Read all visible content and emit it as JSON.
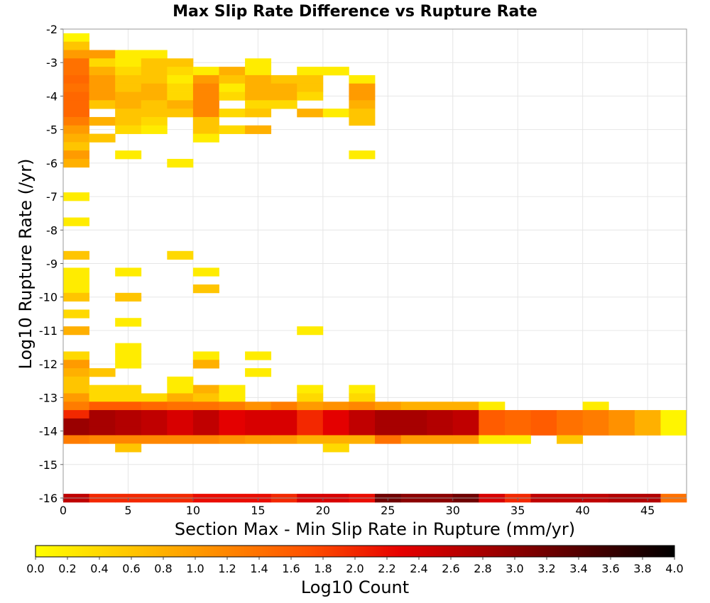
{
  "chart_data": {
    "type": "heatmap",
    "title": "Max Slip Rate Difference vs Rupture Rate",
    "xlabel": "Section Max - Min Slip Rate in Rupture (mm/yr)",
    "ylabel": "Log10 Rupture Rate (/yr)",
    "xlim": [
      0,
      48
    ],
    "ylim": [
      -16,
      -2
    ],
    "x_bin_width": 2,
    "y_bin_width": 0.25,
    "x_ticks": [
      0,
      5,
      10,
      15,
      20,
      25,
      30,
      35,
      40,
      45
    ],
    "y_ticks": [
      -2,
      -3,
      -4,
      -5,
      -6,
      -7,
      -8,
      -9,
      -10,
      -11,
      -12,
      -13,
      -14,
      -15,
      -16
    ],
    "grid": true,
    "colorbar": {
      "label": "Log10 Count",
      "range": [
        0.0,
        4.0
      ],
      "ticks": [
        "0.0",
        "0.2",
        "0.4",
        "0.6",
        "0.8",
        "1.0",
        "1.2",
        "1.4",
        "1.6",
        "1.8",
        "2.0",
        "2.2",
        "2.4",
        "2.6",
        "2.8",
        "3.0",
        "3.2",
        "3.4",
        "3.6",
        "3.8",
        "4.0"
      ],
      "colors": [
        "#ffff00",
        "#ffc800",
        "#ff8c00",
        "#ff5000",
        "#e60000",
        "#a00000",
        "#500000",
        "#000000"
      ]
    },
    "cells": [
      [
        0,
        -2.25,
        0.1
      ],
      [
        0,
        -2.5,
        0.6
      ],
      [
        0,
        -2.75,
        1.0
      ],
      [
        0,
        -3.0,
        1.4
      ],
      [
        0,
        -3.25,
        1.4
      ],
      [
        0,
        -3.5,
        1.5
      ],
      [
        0,
        -3.75,
        1.4
      ],
      [
        0,
        -4.0,
        1.5
      ],
      [
        0,
        -4.25,
        1.5
      ],
      [
        0,
        -4.5,
        1.5
      ],
      [
        0,
        -4.75,
        1.3
      ],
      [
        0,
        -5.0,
        1.0
      ],
      [
        0,
        -5.25,
        0.8
      ],
      [
        0,
        -5.5,
        0.6
      ],
      [
        0,
        -5.75,
        1.0
      ],
      [
        0,
        -6.0,
        0.8
      ],
      [
        0,
        -7.0,
        0.2
      ],
      [
        0,
        -7.75,
        0.2
      ],
      [
        0,
        -8.75,
        0.6
      ],
      [
        0,
        -9.25,
        0.2
      ],
      [
        0,
        -9.5,
        0.2
      ],
      [
        0,
        -9.75,
        0.2
      ],
      [
        0,
        -10.0,
        0.6
      ],
      [
        0,
        -10.5,
        0.4
      ],
      [
        0,
        -11.0,
        0.8
      ],
      [
        0,
        -11.75,
        0.4
      ],
      [
        0,
        -12.0,
        1.0
      ],
      [
        0,
        -12.25,
        0.8
      ],
      [
        0,
        -12.5,
        0.6
      ],
      [
        0,
        -12.75,
        0.6
      ],
      [
        0,
        -13.0,
        1.0
      ],
      [
        0,
        -13.25,
        1.3
      ],
      [
        0,
        -13.5,
        2.0
      ],
      [
        0,
        -13.75,
        2.9
      ],
      [
        0,
        -14.0,
        2.9
      ],
      [
        0,
        -14.25,
        1.3
      ],
      [
        0,
        -16.0,
        2.6
      ],
      [
        2,
        -2.75,
        1.0
      ],
      [
        2,
        -3.0,
        0.4
      ],
      [
        2,
        -3.25,
        0.8
      ],
      [
        2,
        -3.5,
        1.0
      ],
      [
        2,
        -3.75,
        1.0
      ],
      [
        2,
        -4.0,
        1.0
      ],
      [
        2,
        -4.25,
        0.6
      ],
      [
        2,
        -4.75,
        0.8
      ],
      [
        2,
        -5.25,
        0.6
      ],
      [
        2,
        -12.25,
        0.6
      ],
      [
        2,
        -12.75,
        0.4
      ],
      [
        2,
        -13.0,
        0.4
      ],
      [
        2,
        -13.25,
        1.6
      ],
      [
        2,
        -13.5,
        2.8
      ],
      [
        2,
        -13.75,
        2.8
      ],
      [
        2,
        -14.0,
        2.8
      ],
      [
        2,
        -14.25,
        1.2
      ],
      [
        2,
        -16.0,
        2.0
      ],
      [
        4,
        -2.75,
        0.2
      ],
      [
        4,
        -3.0,
        0.2
      ],
      [
        4,
        -3.25,
        0.4
      ],
      [
        4,
        -3.5,
        0.6
      ],
      [
        4,
        -3.75,
        0.6
      ],
      [
        4,
        -4.0,
        0.8
      ],
      [
        4,
        -4.25,
        0.8
      ],
      [
        4,
        -4.5,
        0.6
      ],
      [
        4,
        -4.75,
        0.6
      ],
      [
        4,
        -5.0,
        0.4
      ],
      [
        4,
        -5.75,
        0.2
      ],
      [
        4,
        -9.25,
        0.2
      ],
      [
        4,
        -10.0,
        0.6
      ],
      [
        4,
        -10.75,
        0.2
      ],
      [
        4,
        -11.5,
        0.2
      ],
      [
        4,
        -11.75,
        0.2
      ],
      [
        4,
        -12.0,
        0.2
      ],
      [
        4,
        -12.75,
        0.4
      ],
      [
        4,
        -13.0,
        0.4
      ],
      [
        4,
        -13.25,
        1.6
      ],
      [
        4,
        -13.5,
        2.7
      ],
      [
        4,
        -13.75,
        2.7
      ],
      [
        4,
        -14.0,
        2.7
      ],
      [
        4,
        -14.25,
        1.2
      ],
      [
        4,
        -14.5,
        0.6
      ],
      [
        4,
        -16.0,
        2.0
      ],
      [
        6,
        -2.75,
        0.2
      ],
      [
        6,
        -3.0,
        0.6
      ],
      [
        6,
        -3.25,
        0.6
      ],
      [
        6,
        -3.5,
        0.6
      ],
      [
        6,
        -3.75,
        0.8
      ],
      [
        6,
        -4.0,
        0.8
      ],
      [
        6,
        -4.25,
        0.6
      ],
      [
        6,
        -4.5,
        0.6
      ],
      [
        6,
        -4.75,
        0.4
      ],
      [
        6,
        -5.0,
        0.2
      ],
      [
        6,
        -13.0,
        0.4
      ],
      [
        6,
        -13.25,
        1.5
      ],
      [
        6,
        -13.5,
        2.6
      ],
      [
        6,
        -13.75,
        2.6
      ],
      [
        6,
        -14.0,
        2.6
      ],
      [
        6,
        -14.25,
        1.2
      ],
      [
        6,
        -16.0,
        2.0
      ],
      [
        8,
        -3.0,
        0.6
      ],
      [
        8,
        -3.25,
        0.4
      ],
      [
        8,
        -3.5,
        0.2
      ],
      [
        8,
        -3.75,
        0.4
      ],
      [
        8,
        -4.0,
        0.4
      ],
      [
        8,
        -4.25,
        0.8
      ],
      [
        8,
        -4.5,
        0.6
      ],
      [
        8,
        -6.0,
        0.2
      ],
      [
        8,
        -8.75,
        0.4
      ],
      [
        8,
        -12.5,
        0.2
      ],
      [
        8,
        -12.75,
        0.2
      ],
      [
        8,
        -13.0,
        0.8
      ],
      [
        8,
        -13.25,
        1.4
      ],
      [
        8,
        -13.5,
        2.4
      ],
      [
        8,
        -13.75,
        2.4
      ],
      [
        8,
        -14.0,
        2.4
      ],
      [
        8,
        -14.25,
        1.2
      ],
      [
        8,
        -16.0,
        2.0
      ],
      [
        10,
        -3.25,
        0.2
      ],
      [
        10,
        -3.5,
        1.0
      ],
      [
        10,
        -3.75,
        1.2
      ],
      [
        10,
        -4.0,
        1.2
      ],
      [
        10,
        -4.25,
        1.2
      ],
      [
        10,
        -4.5,
        1.2
      ],
      [
        10,
        -4.75,
        0.6
      ],
      [
        10,
        -5.0,
        0.6
      ],
      [
        10,
        -5.25,
        0.2
      ],
      [
        10,
        -9.25,
        0.2
      ],
      [
        10,
        -9.75,
        0.6
      ],
      [
        10,
        -11.75,
        0.2
      ],
      [
        10,
        -12.0,
        0.8
      ],
      [
        10,
        -12.75,
        0.8
      ],
      [
        10,
        -13.0,
        0.6
      ],
      [
        10,
        -13.25,
        1.4
      ],
      [
        10,
        -13.5,
        2.6
      ],
      [
        10,
        -13.75,
        2.6
      ],
      [
        10,
        -14.0,
        2.6
      ],
      [
        10,
        -14.25,
        1.2
      ],
      [
        10,
        -16.0,
        2.2
      ],
      [
        12,
        -3.25,
        0.8
      ],
      [
        12,
        -3.5,
        0.6
      ],
      [
        12,
        -3.75,
        0.2
      ],
      [
        12,
        -4.0,
        0.4
      ],
      [
        12,
        -4.5,
        0.4
      ],
      [
        12,
        -5.0,
        0.4
      ],
      [
        12,
        -12.75,
        0.2
      ],
      [
        12,
        -13.0,
        0.2
      ],
      [
        12,
        -13.25,
        1.3
      ],
      [
        12,
        -13.5,
        2.3
      ],
      [
        12,
        -13.75,
        2.3
      ],
      [
        12,
        -14.0,
        2.3
      ],
      [
        12,
        -14.25,
        1.1
      ],
      [
        12,
        -16.0,
        2.2
      ],
      [
        14,
        -3.0,
        0.2
      ],
      [
        14,
        -3.25,
        0.2
      ],
      [
        14,
        -3.5,
        0.8
      ],
      [
        14,
        -3.75,
        0.8
      ],
      [
        14,
        -4.0,
        0.8
      ],
      [
        14,
        -4.25,
        0.4
      ],
      [
        14,
        -4.5,
        0.6
      ],
      [
        14,
        -5.0,
        0.8
      ],
      [
        14,
        -11.75,
        0.2
      ],
      [
        14,
        -12.25,
        0.2
      ],
      [
        14,
        -13.25,
        1.1
      ],
      [
        14,
        -13.5,
        2.4
      ],
      [
        14,
        -13.75,
        2.4
      ],
      [
        14,
        -14.0,
        2.4
      ],
      [
        14,
        -14.25,
        1.0
      ],
      [
        14,
        -16.0,
        2.2
      ],
      [
        16,
        -3.5,
        0.6
      ],
      [
        16,
        -3.75,
        0.8
      ],
      [
        16,
        -4.0,
        0.8
      ],
      [
        16,
        -4.25,
        0.4
      ],
      [
        16,
        -13.25,
        1.3
      ],
      [
        16,
        -13.5,
        2.4
      ],
      [
        16,
        -13.75,
        2.4
      ],
      [
        16,
        -14.0,
        2.4
      ],
      [
        16,
        -14.25,
        1.0
      ],
      [
        16,
        -16.0,
        2.0
      ],
      [
        18,
        -3.25,
        0.2
      ],
      [
        18,
        -3.5,
        0.6
      ],
      [
        18,
        -3.75,
        0.6
      ],
      [
        18,
        -4.0,
        0.4
      ],
      [
        18,
        -4.5,
        0.8
      ],
      [
        18,
        -11.0,
        0.2
      ],
      [
        18,
        -12.75,
        0.2
      ],
      [
        18,
        -13.0,
        0.4
      ],
      [
        18,
        -13.25,
        1.0
      ],
      [
        18,
        -13.5,
        2.0
      ],
      [
        18,
        -13.75,
        2.0
      ],
      [
        18,
        -14.0,
        2.0
      ],
      [
        18,
        -14.25,
        0.8
      ],
      [
        18,
        -16.0,
        2.4
      ],
      [
        20,
        -3.25,
        0.2
      ],
      [
        20,
        -4.5,
        0.2
      ],
      [
        20,
        -13.25,
        1.1
      ],
      [
        20,
        -13.5,
        2.3
      ],
      [
        20,
        -13.75,
        2.3
      ],
      [
        20,
        -14.0,
        2.3
      ],
      [
        20,
        -14.25,
        0.8
      ],
      [
        20,
        -14.5,
        0.4
      ],
      [
        20,
        -16.0,
        2.4
      ],
      [
        22,
        -3.5,
        0.2
      ],
      [
        22,
        -3.75,
        1.0
      ],
      [
        22,
        -4.0,
        1.0
      ],
      [
        22,
        -4.25,
        0.8
      ],
      [
        22,
        -4.5,
        0.6
      ],
      [
        22,
        -4.75,
        0.6
      ],
      [
        22,
        -5.75,
        0.2
      ],
      [
        22,
        -12.75,
        0.2
      ],
      [
        22,
        -13.0,
        0.4
      ],
      [
        22,
        -13.25,
        1.2
      ],
      [
        22,
        -13.5,
        2.6
      ],
      [
        22,
        -13.75,
        2.6
      ],
      [
        22,
        -14.0,
        2.6
      ],
      [
        22,
        -14.25,
        0.8
      ],
      [
        22,
        -16.0,
        2.2
      ],
      [
        24,
        -13.25,
        1.0
      ],
      [
        24,
        -13.5,
        2.8
      ],
      [
        24,
        -13.75,
        2.8
      ],
      [
        24,
        -14.0,
        2.8
      ],
      [
        24,
        -14.25,
        1.4
      ],
      [
        24,
        -16.0,
        3.2
      ],
      [
        26,
        -13.25,
        0.8
      ],
      [
        26,
        -13.5,
        2.8
      ],
      [
        26,
        -13.75,
        2.8
      ],
      [
        26,
        -14.0,
        2.8
      ],
      [
        26,
        -14.25,
        1.0
      ],
      [
        26,
        -16.0,
        3.0
      ],
      [
        28,
        -13.25,
        0.8
      ],
      [
        28,
        -13.5,
        2.7
      ],
      [
        28,
        -13.75,
        2.7
      ],
      [
        28,
        -14.0,
        2.7
      ],
      [
        28,
        -14.25,
        1.0
      ],
      [
        28,
        -16.0,
        3.0
      ],
      [
        30,
        -13.25,
        0.8
      ],
      [
        30,
        -13.5,
        2.6
      ],
      [
        30,
        -13.75,
        2.6
      ],
      [
        30,
        -14.0,
        2.6
      ],
      [
        30,
        -14.25,
        1.0
      ],
      [
        30,
        -16.0,
        3.2
      ],
      [
        32,
        -13.25,
        0.2
      ],
      [
        32,
        -13.5,
        1.6
      ],
      [
        32,
        -13.75,
        1.6
      ],
      [
        32,
        -14.0,
        1.6
      ],
      [
        32,
        -14.25,
        0.2
      ],
      [
        32,
        -16.0,
        2.4
      ],
      [
        34,
        -13.5,
        1.5
      ],
      [
        34,
        -13.75,
        1.5
      ],
      [
        34,
        -14.0,
        1.5
      ],
      [
        34,
        -14.25,
        0.2
      ],
      [
        34,
        -16.0,
        2.0
      ],
      [
        36,
        -13.5,
        1.6
      ],
      [
        36,
        -13.75,
        1.6
      ],
      [
        36,
        -14.0,
        1.6
      ],
      [
        36,
        -16.0,
        2.6
      ],
      [
        38,
        -13.5,
        1.4
      ],
      [
        38,
        -13.75,
        1.4
      ],
      [
        38,
        -14.0,
        1.4
      ],
      [
        38,
        -14.25,
        0.6
      ],
      [
        38,
        -16.0,
        2.6
      ],
      [
        40,
        -13.25,
        0.2
      ],
      [
        40,
        -13.5,
        1.3
      ],
      [
        40,
        -13.75,
        1.3
      ],
      [
        40,
        -14.0,
        1.3
      ],
      [
        40,
        -16.0,
        2.6
      ],
      [
        42,
        -13.5,
        1.1
      ],
      [
        42,
        -13.75,
        1.1
      ],
      [
        42,
        -14.0,
        1.1
      ],
      [
        42,
        -16.0,
        2.7
      ],
      [
        44,
        -13.5,
        0.8
      ],
      [
        44,
        -13.75,
        0.8
      ],
      [
        44,
        -14.0,
        0.8
      ],
      [
        44,
        -16.0,
        2.7
      ],
      [
        46,
        -13.5,
        0.1
      ],
      [
        46,
        -13.75,
        0.1
      ],
      [
        46,
        -14.0,
        0.1
      ],
      [
        46,
        -16.0,
        1.4
      ]
    ]
  }
}
